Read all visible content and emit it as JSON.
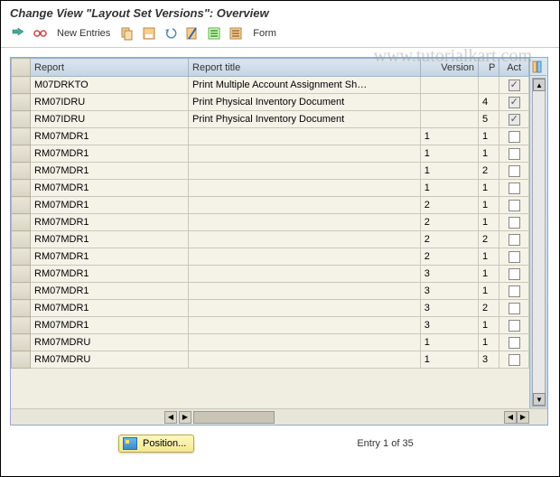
{
  "title": "Change View \"Layout Set Versions\": Overview",
  "watermark": "www.tutorialkart.com",
  "toolbar": {
    "new_entries": "New Entries",
    "form": "Form"
  },
  "table": {
    "headers": {
      "report": "Report",
      "title": "Report title",
      "version": "Version",
      "p": "P",
      "act": "Act"
    },
    "rows": [
      {
        "report": "M07DRKTO",
        "title": "Print Multiple Account Assignment Sh…",
        "version": "",
        "p": "",
        "act": true
      },
      {
        "report": "RM07IDRU",
        "title": "Print Physical Inventory Document",
        "version": "",
        "p": "4",
        "act": true
      },
      {
        "report": "RM07IDRU",
        "title": "Print Physical Inventory Document",
        "version": "",
        "p": "5",
        "act": true
      },
      {
        "report": "RM07MDR1",
        "title": "",
        "version": "1",
        "p": "1",
        "act": false
      },
      {
        "report": "RM07MDR1",
        "title": "",
        "version": "1",
        "p": "1",
        "act": false
      },
      {
        "report": "RM07MDR1",
        "title": "",
        "version": "1",
        "p": "2",
        "act": false
      },
      {
        "report": "RM07MDR1",
        "title": "",
        "version": "1",
        "p": "1",
        "act": false
      },
      {
        "report": "RM07MDR1",
        "title": "",
        "version": "2",
        "p": "1",
        "act": false
      },
      {
        "report": "RM07MDR1",
        "title": "",
        "version": "2",
        "p": "1",
        "act": false
      },
      {
        "report": "RM07MDR1",
        "title": "",
        "version": "2",
        "p": "2",
        "act": false
      },
      {
        "report": "RM07MDR1",
        "title": "",
        "version": "2",
        "p": "1",
        "act": false
      },
      {
        "report": "RM07MDR1",
        "title": "",
        "version": "3",
        "p": "1",
        "act": false
      },
      {
        "report": "RM07MDR1",
        "title": "",
        "version": "3",
        "p": "1",
        "act": false
      },
      {
        "report": "RM07MDR1",
        "title": "",
        "version": "3",
        "p": "2",
        "act": false
      },
      {
        "report": "RM07MDR1",
        "title": "",
        "version": "3",
        "p": "1",
        "act": false
      },
      {
        "report": "RM07MDRU",
        "title": "",
        "version": "1",
        "p": "1",
        "act": false
      },
      {
        "report": "RM07MDRU",
        "title": "",
        "version": "1",
        "p": "3",
        "act": false
      }
    ]
  },
  "footer": {
    "position_label": "Position...",
    "entry_text": "Entry 1 of 35"
  },
  "colors": {
    "header_grad_top": "#dce6ef",
    "header_grad_bot": "#c4d4e3",
    "cell_bg": "#f5f3e8",
    "border": "#9fb4c8"
  }
}
